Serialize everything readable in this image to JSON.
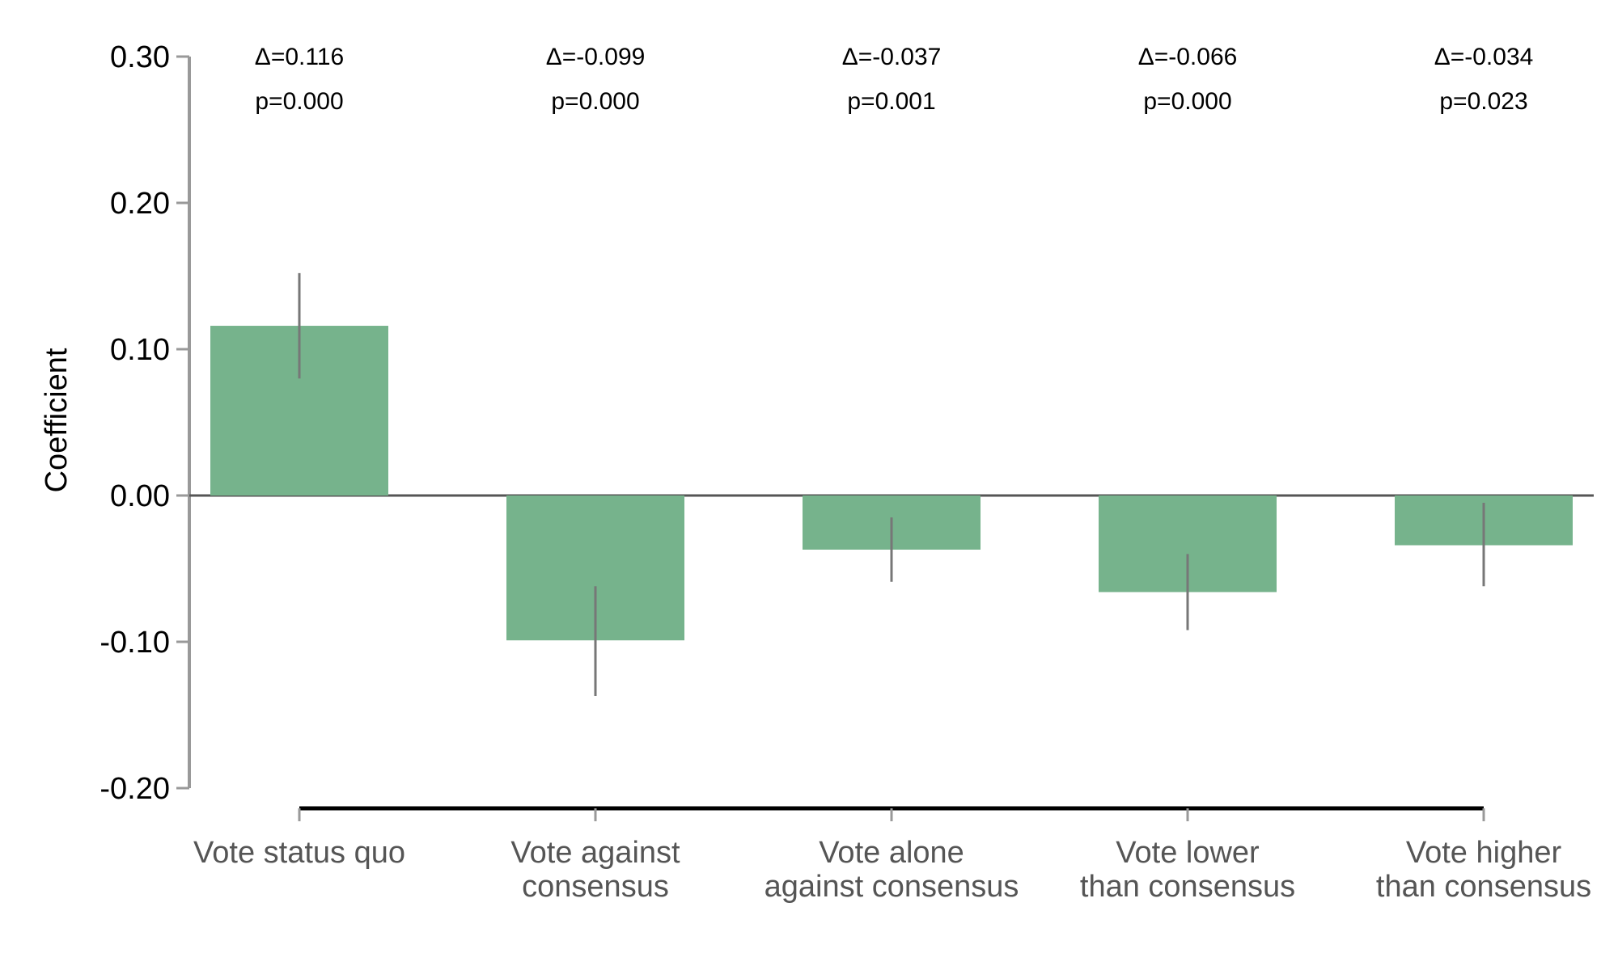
{
  "chart_data": {
    "type": "bar",
    "ylabel": "Coefficient",
    "xlabel": "",
    "ylim": [
      -0.2,
      0.3
    ],
    "y_ticks": [
      0.3,
      0.2,
      0.1,
      0.0,
      -0.1,
      -0.2
    ],
    "y_tick_labels": [
      "0.30",
      "0.20",
      "0.10",
      "0.00",
      "-0.10",
      "-0.20"
    ],
    "grid": false,
    "categories": [
      [
        "Vote status quo"
      ],
      [
        "Vote against",
        "consensus"
      ],
      [
        "Vote alone",
        "against consensus"
      ],
      [
        "Vote lower",
        "than consensus"
      ],
      [
        "Vote higher",
        "than consensus"
      ]
    ],
    "values": [
      0.116,
      -0.099,
      -0.037,
      -0.066,
      -0.034
    ],
    "error_bars": [
      [
        0.08,
        0.152
      ],
      [
        -0.137,
        -0.062
      ],
      [
        -0.059,
        -0.015
      ],
      [
        -0.092,
        -0.04
      ],
      [
        -0.062,
        -0.005
      ]
    ],
    "annotations": [
      {
        "delta": "Δ=0.116",
        "p": "p=0.000"
      },
      {
        "delta": "Δ=-0.099",
        "p": "p=0.000"
      },
      {
        "delta": "Δ=-0.037",
        "p": "p=0.001"
      },
      {
        "delta": "Δ=-0.066",
        "p": "p=0.000"
      },
      {
        "delta": "Δ=-0.034",
        "p": "p=0.023"
      }
    ],
    "colors": {
      "bar": "#76b38c",
      "error_bar": "#777777",
      "y_axis": "#999999",
      "zero_line": "#555555",
      "x_bracket": "#000000",
      "x_ticks": "#999999"
    }
  }
}
